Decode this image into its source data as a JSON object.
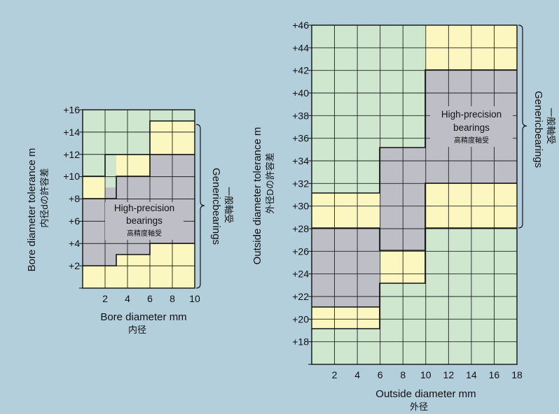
{
  "palette": {
    "background": "#b3cfdb",
    "green": "#cfe6cf",
    "yellow": "#fcf7c0",
    "gray": "#bebec6",
    "line": "#222222"
  },
  "left_chart": {
    "ylabel": "Bore diameter  tolerance   m",
    "ylabel_jp": "内径dの許容差",
    "xlabel": "Bore diameter    mm",
    "xlabel_jp": "内径",
    "y_ticks": [
      "+16",
      "+14",
      "+12",
      "+10",
      "+8",
      "+6",
      "+4",
      "+2"
    ],
    "x_ticks": [
      "2",
      "4",
      "6",
      "8",
      "10"
    ],
    "region_label": [
      "High-precision",
      "bearings"
    ],
    "region_label_jp": "高精度軸受",
    "bracket_label": "Genericbearings",
    "bracket_label_jp": "一般軸受"
  },
  "right_chart": {
    "ylabel": "Outside diameter tolerance   m",
    "ylabel_jp": "外径Dの許容差",
    "xlabel": "Outside diameter     mm",
    "xlabel_jp": "外径",
    "y_ticks": [
      "+46",
      "+44",
      "+42",
      "+40",
      "+38",
      "+36",
      "+34",
      "+32",
      "+30",
      "+28",
      "+26",
      "+24",
      "+22",
      "+20",
      "+18"
    ],
    "x_ticks": [
      "2",
      "4",
      "6",
      "8",
      "10",
      "12",
      "14",
      "16",
      "18"
    ],
    "region_label": [
      "High-precision",
      "bearings"
    ],
    "region_label_jp": "高精度軸受",
    "bracket_label": "Genericbearings",
    "bracket_label_jp": "一般軸受"
  }
}
